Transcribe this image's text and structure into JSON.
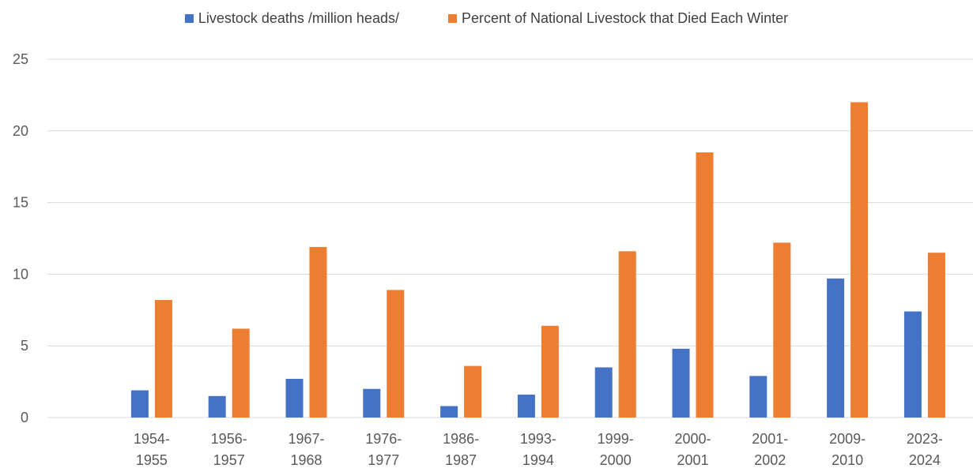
{
  "chart_data": {
    "type": "bar",
    "categories": [
      [
        "1954-",
        "1955"
      ],
      [
        "1956-",
        "1957"
      ],
      [
        "1967-",
        "1968"
      ],
      [
        "1976-",
        "1977"
      ],
      [
        "1986-",
        "1987"
      ],
      [
        "1993-",
        "1994"
      ],
      [
        "1999-",
        "2000"
      ],
      [
        "2000-",
        "2001"
      ],
      [
        "2001-",
        "2002"
      ],
      [
        "2009-",
        "2010"
      ],
      [
        "2023-",
        "2024"
      ]
    ],
    "series": [
      {
        "name": "Livestock deaths /million heads/",
        "color": "#4472C4",
        "values": [
          1.9,
          1.5,
          2.7,
          2.0,
          0.8,
          1.6,
          3.5,
          4.8,
          2.9,
          9.7,
          7.4
        ]
      },
      {
        "name": "Percent of National Livestock that Died Each Winter",
        "color": "#ED7D31",
        "values": [
          8.2,
          6.2,
          11.9,
          8.9,
          3.6,
          6.4,
          11.6,
          18.5,
          12.2,
          22.0,
          11.5
        ]
      }
    ],
    "ylim": [
      0,
      25
    ],
    "yticks": [
      0,
      5,
      10,
      15,
      20,
      25
    ],
    "grid": true,
    "legend_position": "top"
  }
}
